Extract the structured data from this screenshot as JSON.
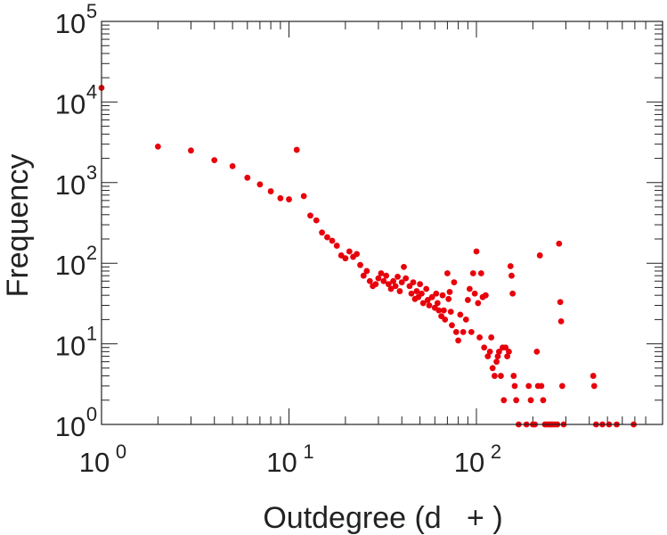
{
  "chart_data": {
    "type": "scatter",
    "title": "",
    "xlabel": "Outdegree (d   + )",
    "ylabel": "Frequency",
    "xscale": "log",
    "yscale": "log",
    "xlim": [
      1,
      870
    ],
    "ylim": [
      1,
      100000
    ],
    "grid": false,
    "legend": "none",
    "x_tick_labels": [
      {
        "base": "10",
        "exp": "0",
        "value": 1
      },
      {
        "base": "10",
        "exp": "1",
        "value": 10
      },
      {
        "base": "10",
        "exp": "2",
        "value": 100
      }
    ],
    "y_tick_labels": [
      {
        "base": "10",
        "exp": "0",
        "value": 1
      },
      {
        "base": "10",
        "exp": "1",
        "value": 10
      },
      {
        "base": "10",
        "exp": "2",
        "value": 100
      },
      {
        "base": "10",
        "exp": "3",
        "value": 1000
      },
      {
        "base": "10",
        "exp": "4",
        "value": 10000
      },
      {
        "base": "10",
        "exp": "5",
        "value": 100000
      }
    ],
    "series": [
      {
        "color": "#e8000b",
        "points": [
          [
            1,
            15000
          ],
          [
            2,
            2800
          ],
          [
            3,
            2500
          ],
          [
            4,
            1900
          ],
          [
            5,
            1600
          ],
          [
            6,
            1150
          ],
          [
            7,
            950
          ],
          [
            8,
            780
          ],
          [
            9,
            640
          ],
          [
            10,
            620
          ],
          [
            11,
            2550
          ],
          [
            12,
            680
          ],
          [
            13,
            390
          ],
          [
            14,
            340
          ],
          [
            15,
            240
          ],
          [
            16,
            210
          ],
          [
            17,
            190
          ],
          [
            18,
            165
          ],
          [
            19,
            125
          ],
          [
            20,
            115
          ],
          [
            21,
            140
          ],
          [
            22,
            120
          ],
          [
            23,
            130
          ],
          [
            24,
            95
          ],
          [
            25,
            70
          ],
          [
            26,
            80
          ],
          [
            27,
            60
          ],
          [
            28,
            52
          ],
          [
            29,
            55
          ],
          [
            30,
            65
          ],
          [
            31,
            75
          ],
          [
            32,
            60
          ],
          [
            33,
            70
          ],
          [
            34,
            55
          ],
          [
            35,
            48
          ],
          [
            36,
            60
          ],
          [
            37,
            52
          ],
          [
            38,
            68
          ],
          [
            39,
            45
          ],
          [
            40,
            58
          ],
          [
            41,
            90
          ],
          [
            42,
            65
          ],
          [
            44,
            52
          ],
          [
            45,
            42
          ],
          [
            46,
            58
          ],
          [
            47,
            36
          ],
          [
            48,
            45
          ],
          [
            49,
            38
          ],
          [
            50,
            55
          ],
          [
            51,
            42
          ],
          [
            52,
            32
          ],
          [
            54,
            48
          ],
          [
            55,
            35
          ],
          [
            56,
            30
          ],
          [
            58,
            38
          ],
          [
            60,
            28
          ],
          [
            61,
            42
          ],
          [
            62,
            32
          ],
          [
            63,
            26
          ],
          [
            65,
            22
          ],
          [
            66,
            40
          ],
          [
            67,
            26
          ],
          [
            68,
            20
          ],
          [
            70,
            75
          ],
          [
            71,
            36
          ],
          [
            72,
            44
          ],
          [
            73,
            25
          ],
          [
            74,
            17
          ],
          [
            76,
            58
          ],
          [
            78,
            14
          ],
          [
            80,
            11
          ],
          [
            82,
            23
          ],
          [
            85,
            14
          ],
          [
            88,
            20
          ],
          [
            90,
            35
          ],
          [
            92,
            48
          ],
          [
            94,
            14
          ],
          [
            96,
            75
          ],
          [
            98,
            42
          ],
          [
            100,
            140
          ],
          [
            102,
            32
          ],
          [
            104,
            12
          ],
          [
            106,
            75
          ],
          [
            108,
            38
          ],
          [
            110,
            9
          ],
          [
            112,
            40
          ],
          [
            115,
            7
          ],
          [
            118,
            8
          ],
          [
            120,
            12
          ],
          [
            122,
            5
          ],
          [
            125,
            4
          ],
          [
            128,
            6
          ],
          [
            130,
            7
          ],
          [
            132,
            8
          ],
          [
            135,
            4
          ],
          [
            138,
            9
          ],
          [
            140,
            2
          ],
          [
            143,
            9
          ],
          [
            146,
            7
          ],
          [
            149,
            8
          ],
          [
            152,
            92
          ],
          [
            154,
            70
          ],
          [
            156,
            42
          ],
          [
            158,
            4
          ],
          [
            160,
            3
          ],
          [
            163,
            2
          ],
          [
            168,
            1
          ],
          [
            185,
            1
          ],
          [
            190,
            3
          ],
          [
            195,
            2
          ],
          [
            200,
            1
          ],
          [
            205,
            1
          ],
          [
            210,
            8
          ],
          [
            213,
            3
          ],
          [
            218,
            125
          ],
          [
            222,
            3
          ],
          [
            227,
            2
          ],
          [
            232,
            1
          ],
          [
            238,
            1
          ],
          [
            245,
            1
          ],
          [
            250,
            1
          ],
          [
            255,
            1
          ],
          [
            262,
            1
          ],
          [
            270,
            1
          ],
          [
            276,
            175
          ],
          [
            280,
            33
          ],
          [
            283,
            19
          ],
          [
            287,
            3
          ],
          [
            292,
            1
          ],
          [
            420,
            4
          ],
          [
            425,
            3
          ],
          [
            435,
            1
          ],
          [
            470,
            1
          ],
          [
            510,
            1
          ],
          [
            560,
            1
          ],
          [
            690,
            1
          ]
        ]
      }
    ]
  }
}
